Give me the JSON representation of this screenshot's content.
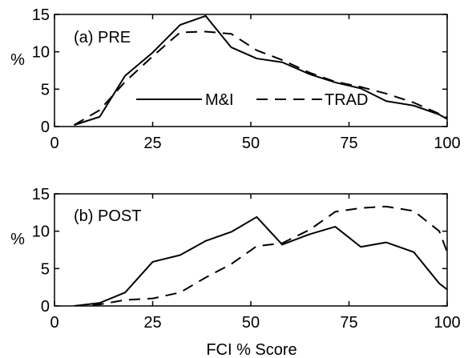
{
  "chart_data": [
    {
      "type": "line",
      "annotation": "(a) PRE",
      "ylabel": "%",
      "xlabel": "",
      "xlim": [
        0,
        100
      ],
      "ylim": [
        0,
        15
      ],
      "xticks": [
        "0",
        "25",
        "50",
        "75",
        "100"
      ],
      "yticks": [
        "0",
        "5",
        "10",
        "15"
      ],
      "grid": false,
      "legend_position": "center",
      "series": [
        {
          "name": "M&I",
          "style": "solid",
          "x": [
            5,
            11.5,
            18,
            25,
            32,
            38.5,
            45,
            51.5,
            58,
            65,
            71.5,
            78,
            84.5,
            91.5,
            98,
            100
          ],
          "y": [
            0.2,
            1.3,
            6.8,
            9.9,
            13.6,
            14.8,
            10.6,
            9.1,
            8.6,
            7.0,
            5.9,
            5.1,
            3.4,
            2.8,
            1.6,
            1.0
          ]
        },
        {
          "name": "TRAD",
          "style": "dashed",
          "x": [
            5,
            11.5,
            18,
            25,
            32,
            38.5,
            45,
            51.5,
            58,
            65,
            71.5,
            78,
            84.5,
            91.5,
            98,
            100
          ],
          "y": [
            0.2,
            2.2,
            6.0,
            9.4,
            12.6,
            12.7,
            12.4,
            10.2,
            8.9,
            7.2,
            6.0,
            5.3,
            4.4,
            3.2,
            1.7,
            1.2
          ]
        }
      ]
    },
    {
      "type": "line",
      "annotation": "(b) POST",
      "ylabel": "%",
      "xlabel": "FCI % Score",
      "xlim": [
        0,
        100
      ],
      "ylim": [
        0,
        15
      ],
      "xticks": [
        "0",
        "25",
        "50",
        "75",
        "100"
      ],
      "yticks": [
        "0",
        "5",
        "10",
        "15"
      ],
      "grid": false,
      "series": [
        {
          "name": "M&I",
          "style": "solid",
          "x": [
            5,
            11.5,
            18,
            25,
            32,
            38.5,
            45,
            51.5,
            58,
            65,
            71.5,
            78,
            84.5,
            91.5,
            98,
            100
          ],
          "y": [
            0,
            0.4,
            1.8,
            5.9,
            6.8,
            8.7,
            9.9,
            11.9,
            8.2,
            9.6,
            10.6,
            7.9,
            8.5,
            7.2,
            3.0,
            2.2
          ]
        },
        {
          "name": "TRAD",
          "style": "dashed",
          "x": [
            5,
            11.5,
            18,
            25,
            32,
            38.5,
            45,
            51.5,
            58,
            65,
            71.5,
            78,
            84.5,
            91.5,
            98,
            100
          ],
          "y": [
            0,
            0.2,
            0.8,
            1.0,
            1.8,
            3.8,
            5.6,
            8.0,
            8.4,
            10.2,
            12.6,
            13.1,
            13.3,
            12.7,
            10.0,
            7.2
          ]
        }
      ]
    }
  ],
  "legend": {
    "entries": [
      "M&I",
      "TRAD"
    ]
  }
}
